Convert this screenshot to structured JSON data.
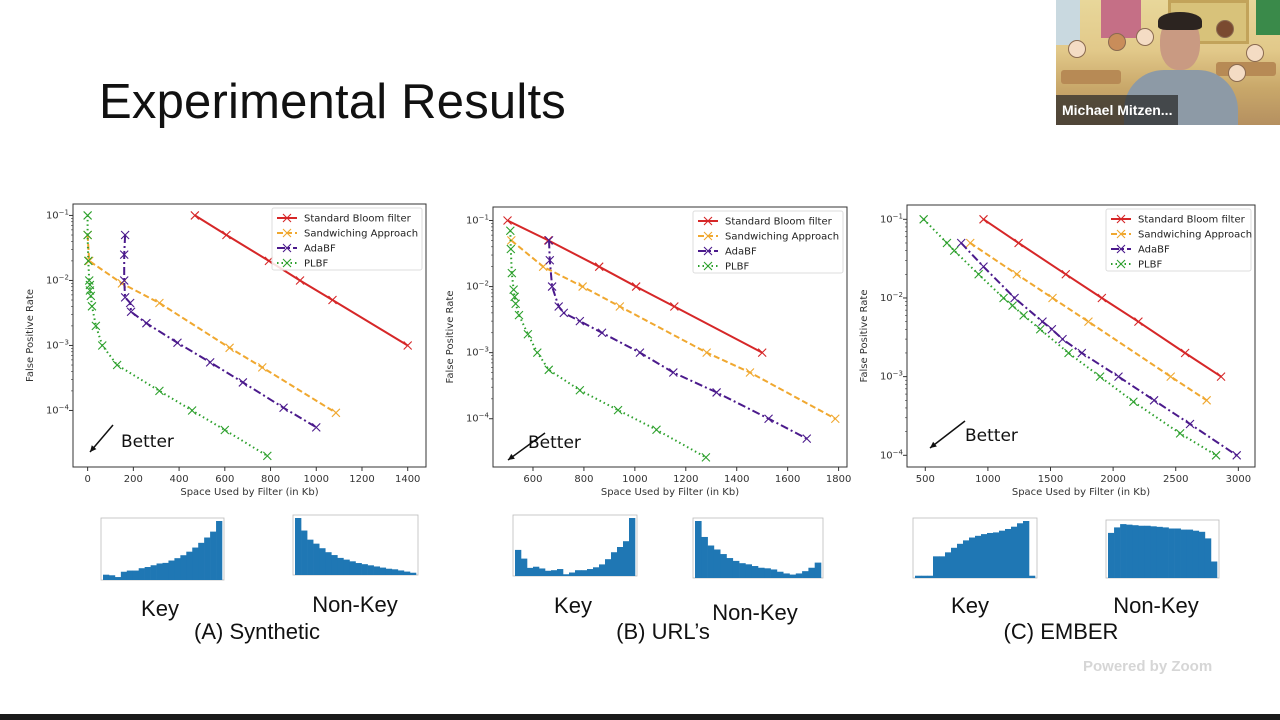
{
  "slide": {
    "title": "Experimental Results",
    "annotation": "Better",
    "panels": [
      {
        "caption": "(A) Synthetic",
        "key_label": "Key",
        "nonkey_label": "Non-Key"
      },
      {
        "caption": "(B) URL’s",
        "key_label": "Key",
        "nonkey_label": "Non-Key"
      },
      {
        "caption": "(C) EMBER",
        "key_label": "Key",
        "nonkey_label": "Non-Key"
      }
    ]
  },
  "video": {
    "participant_name": "Michael Mitzen..."
  },
  "watermark": "Powered by Zoom",
  "colors": {
    "standard_bloom": "#d62728",
    "sandwiching": "#f0a830",
    "adabf": "#4b1a8c",
    "plbf": "#2ca02c",
    "histogram": "#1f77b4"
  },
  "chart_data": [
    {
      "type": "line",
      "panel": "(A) Synthetic",
      "xlabel": "Space Used by Filter (in Kb)",
      "ylabel": "False Positive Rate",
      "yscale": "log",
      "xlim": [
        -64,
        1480
      ],
      "ylim": [
        1.35e-05,
        0.15
      ],
      "xticks": [
        0,
        200,
        400,
        600,
        800,
        1000,
        1200,
        1400
      ],
      "yticks": [
        -4,
        -3,
        -2,
        -1
      ],
      "legend": "top-right",
      "grid": false,
      "series": [
        {
          "name": "Standard Bloom filter",
          "style": "solid",
          "x": [
            469,
            607,
            793,
            929,
            1071,
            1400
          ],
          "y": [
            0.1,
            0.05,
            0.02,
            0.01,
            0.005,
            0.001
          ]
        },
        {
          "name": "Sandwiching Approach",
          "style": "dashed",
          "x": [
            0,
            7,
            150,
            314,
            621,
            764,
            1086
          ],
          "y": [
            0.05,
            0.02,
            0.009,
            0.0045,
            0.00092,
            0.00046,
            9.2e-05
          ]
        },
        {
          "name": "AdaBF",
          "style": "dashdot",
          "x": [
            164,
            160,
            160,
            164,
            186,
            190,
            257,
            393,
            536,
            679,
            857,
            1000
          ],
          "y": [
            0.05,
            0.025,
            0.01,
            0.0055,
            0.0045,
            0.0033,
            0.0022,
            0.0011,
            0.00055,
            0.00027,
            0.00011,
            5.5e-05
          ]
        },
        {
          "name": "PLBF",
          "style": "dotted",
          "x": [
            0,
            0,
            3,
            7,
            10,
            10,
            14,
            19,
            36,
            64,
            129,
            314,
            457,
            600,
            786
          ],
          "y": [
            0.1,
            0.05,
            0.02,
            0.01,
            0.0085,
            0.007,
            0.0058,
            0.004,
            0.002,
            0.001,
            0.0005,
            0.0002,
            0.0001,
            5e-05,
            2e-05
          ]
        }
      ]
    },
    {
      "type": "line",
      "panel": "(B) URL’s",
      "xlabel": "Space Used by Filter (in Kb)",
      "ylabel": "False Positive Rate",
      "yscale": "log",
      "xlim": [
        443,
        1833
      ],
      "ylim": [
        1.86e-05,
        0.16
      ],
      "xticks": [
        600,
        800,
        1000,
        1200,
        1400,
        1600,
        1800
      ],
      "yticks": [
        -4,
        -3,
        -2,
        -1
      ],
      "legend": "top-right",
      "grid": false,
      "series": [
        {
          "name": "Standard Bloom filter",
          "style": "solid",
          "x": [
            500,
            660,
            860,
            1005,
            1155,
            1500
          ],
          "y": [
            0.1,
            0.05,
            0.02,
            0.01,
            0.005,
            0.001
          ]
        },
        {
          "name": "Sandwiching Approach",
          "style": "dashed",
          "x": [
            515,
            640,
            795,
            941,
            1282,
            1452,
            1787
          ],
          "y": [
            0.05,
            0.02,
            0.01,
            0.005,
            0.001,
            0.0005,
            0.0001
          ]
        },
        {
          "name": "AdaBF",
          "style": "dashdot",
          "x": [
            663,
            666,
            675,
            701,
            721,
            784,
            871,
            1020,
            1151,
            1321,
            1525,
            1675
          ],
          "y": [
            0.05,
            0.025,
            0.01,
            0.005,
            0.004,
            0.003,
            0.002,
            0.001,
            0.0005,
            0.00025,
            0.0001,
            5e-05
          ]
        },
        {
          "name": "PLBF",
          "style": "dotted",
          "x": [
            511,
            513,
            517,
            524,
            528,
            532,
            545,
            580,
            617,
            662,
            784,
            934,
            1085,
            1279
          ],
          "y": [
            0.07,
            0.037,
            0.016,
            0.009,
            0.007,
            0.0055,
            0.0037,
            0.0019,
            0.001,
            0.00055,
            0.00027,
            0.000135,
            6.8e-05,
            2.6e-05
          ]
        }
      ]
    },
    {
      "type": "line",
      "panel": "(C) EMBER",
      "xlabel": "Space Used by Filter (in Kb)",
      "ylabel": "False Positive Rate",
      "yscale": "log",
      "xlim": [
        354,
        3133
      ],
      "ylim": [
        7.1e-05,
        0.152
      ],
      "xticks": [
        500,
        1000,
        1500,
        2000,
        2500,
        3000
      ],
      "yticks": [
        -4,
        -3,
        -2,
        -1
      ],
      "legend": "top-right",
      "grid": false,
      "series": [
        {
          "name": "Standard Bloom filter",
          "style": "solid",
          "x": [
            965,
            1245,
            1622,
            1910,
            2202,
            2575,
            2862
          ],
          "y": [
            0.1,
            0.05,
            0.02,
            0.01,
            0.005,
            0.002,
            0.001
          ]
        },
        {
          "name": "Sandwiching Approach",
          "style": "dashed",
          "x": [
            859,
            1231,
            1516,
            1803,
            2460,
            2747
          ],
          "y": [
            0.05,
            0.02,
            0.01,
            0.005,
            0.001,
            0.0005
          ]
        },
        {
          "name": "AdaBF",
          "style": "dashdot",
          "x": [
            787,
            965,
            1213,
            1436,
            1511,
            1596,
            1750,
            2043,
            2327,
            2614,
            2987
          ],
          "y": [
            0.05,
            0.025,
            0.01,
            0.005,
            0.004,
            0.003,
            0.002,
            0.001,
            0.0005,
            0.00025,
            0.0001
          ]
        },
        {
          "name": "PLBF",
          "style": "dotted",
          "x": [
            487,
            673,
            731,
            926,
            1125,
            1197,
            1285,
            1418,
            1644,
            1896,
            2162,
            2535,
            2822
          ],
          "y": [
            0.1,
            0.05,
            0.04,
            0.02,
            0.01,
            0.008,
            0.006,
            0.004,
            0.002,
            0.001,
            0.00048,
            0.00019,
            0.0001
          ]
        }
      ]
    },
    {
      "type": "bar",
      "panel": "(A) Synthetic",
      "label": "Key",
      "values": [
        0.09,
        0.08,
        0.05,
        0.14,
        0.16,
        0.16,
        0.2,
        0.22,
        0.25,
        0.28,
        0.29,
        0.33,
        0.37,
        0.42,
        0.48,
        0.55,
        0.63,
        0.72,
        0.82,
        1.0
      ]
    },
    {
      "type": "bar",
      "panel": "(A) Synthetic",
      "label": "Non-Key",
      "values": [
        1.0,
        0.78,
        0.62,
        0.55,
        0.47,
        0.4,
        0.35,
        0.3,
        0.27,
        0.24,
        0.21,
        0.19,
        0.17,
        0.15,
        0.13,
        0.11,
        0.1,
        0.08,
        0.06,
        0.04
      ]
    },
    {
      "type": "bar",
      "panel": "(B) URL’s",
      "label": "Key",
      "values": [
        0.45,
        0.3,
        0.14,
        0.16,
        0.13,
        0.09,
        0.1,
        0.12,
        0.03,
        0.06,
        0.1,
        0.1,
        0.12,
        0.15,
        0.2,
        0.29,
        0.41,
        0.5,
        0.6,
        1.0
      ]
    },
    {
      "type": "bar",
      "panel": "(B) URL’s",
      "label": "Non-Key",
      "values": [
        1.0,
        0.72,
        0.57,
        0.5,
        0.42,
        0.35,
        0.3,
        0.26,
        0.24,
        0.21,
        0.18,
        0.17,
        0.15,
        0.11,
        0.08,
        0.06,
        0.08,
        0.12,
        0.18,
        0.27
      ]
    },
    {
      "type": "bar",
      "panel": "(C) EMBER",
      "label": "Key",
      "values": [
        0.04,
        0.04,
        0.04,
        0.38,
        0.38,
        0.45,
        0.53,
        0.6,
        0.66,
        0.71,
        0.74,
        0.77,
        0.79,
        0.8,
        0.83,
        0.86,
        0.9,
        0.96,
        1.0,
        0.04
      ]
    },
    {
      "type": "bar",
      "panel": "(C) EMBER",
      "label": "Non-Key",
      "values": [
        0.82,
        0.92,
        0.98,
        0.97,
        0.96,
        0.95,
        0.95,
        0.94,
        0.93,
        0.92,
        0.9,
        0.9,
        0.88,
        0.88,
        0.86,
        0.84,
        0.72,
        0.3
      ]
    }
  ]
}
